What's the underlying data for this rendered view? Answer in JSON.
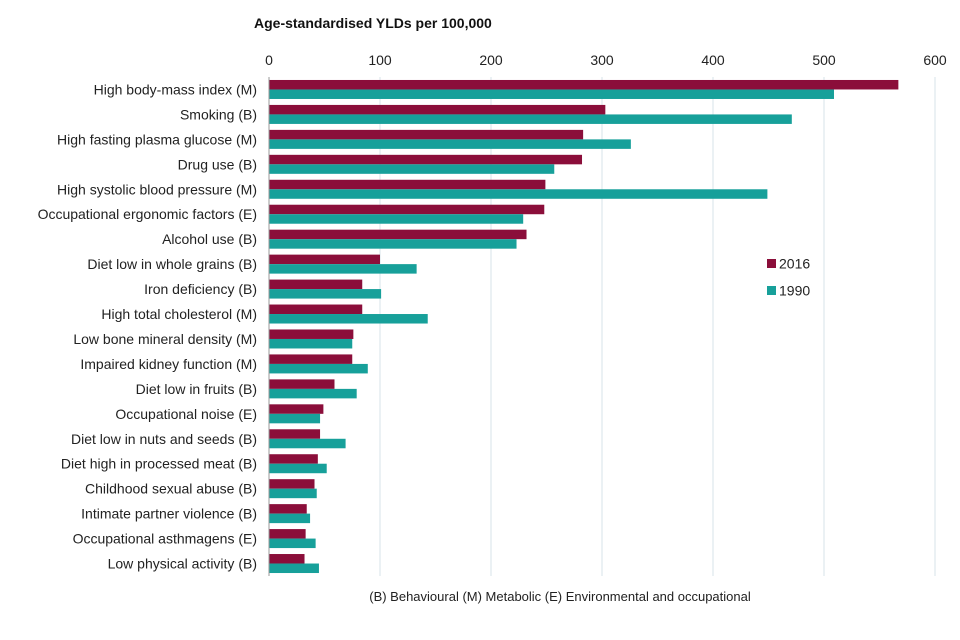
{
  "chart_data": {
    "type": "bar",
    "orientation": "horizontal",
    "axis_title": "Age-standardised YLDs per 100,000",
    "xlim": [
      0,
      600
    ],
    "ticks": [
      "0",
      "100",
      "200",
      "300",
      "400",
      "500",
      "600"
    ],
    "categories": [
      "High body-mass index (M)",
      "Smoking (B)",
      "High fasting plasma glucose (M)",
      "Drug use (B)",
      "High systolic blood pressure (M)",
      "Occupational ergonomic factors (E)",
      "Alcohol use (B)",
      "Diet low in whole grains (B)",
      "Iron deficiency (B)",
      "High total cholesterol (M)",
      "Low bone mineral density (M)",
      "Impaired kidney function (M)",
      "Diet low in fruits (B)",
      "Occupational noise (E)",
      "Diet low in nuts and seeds (B)",
      "Diet high in processed meat (B)",
      "Childhood sexual abuse (B)",
      "Intimate partner violence (B)",
      "Occupational asthmagens (E)",
      "Low physical activity (B)"
    ],
    "series": [
      {
        "name": "2016",
        "color": "#8b0e3a",
        "values": [
          567,
          303,
          283,
          282,
          249,
          248,
          232,
          100,
          84,
          84,
          76,
          75,
          59,
          49,
          46,
          44,
          41,
          34,
          33,
          32
        ]
      },
      {
        "name": "1990",
        "color": "#17a09a",
        "values": [
          509,
          471,
          326,
          257,
          449,
          229,
          223,
          133,
          101,
          143,
          75,
          89,
          79,
          46,
          69,
          52,
          43,
          37,
          42,
          45
        ]
      }
    ],
    "legend": [
      "2016",
      "1990"
    ],
    "legend_position": "right",
    "footnote": "(B) Behavioural  (M) Metabolic  (E) Environmental and occupational"
  }
}
